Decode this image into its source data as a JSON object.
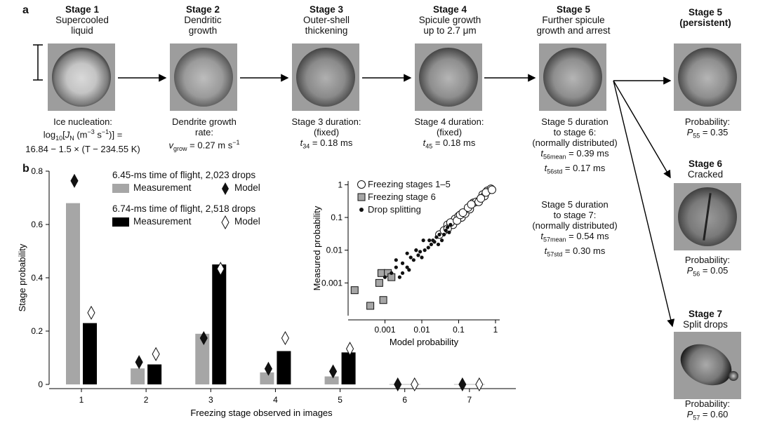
{
  "panel_a": {
    "letter": "a",
    "stages": [
      {
        "title": "Stage 1",
        "sub1": "Supercooled",
        "sub2": "liquid"
      },
      {
        "title": "Stage 2",
        "sub1": "Dendritic",
        "sub2": "growth"
      },
      {
        "title": "Stage 3",
        "sub1": "Outer-shell",
        "sub2": "thickening"
      },
      {
        "title": "Stage 4",
        "sub1": "Spicule growth",
        "sub2": "up to 2.7 μm"
      },
      {
        "title": "Stage 5",
        "sub1": "Further spicule",
        "sub2": "growth and arrest"
      }
    ],
    "side": [
      {
        "title": "Stage 5",
        "sub": "(persistent)",
        "prob_label": "Probability:",
        "prob_sym": "P",
        "prob_sub": "55",
        "prob_val": " = 0.35"
      },
      {
        "title": "Stage 6",
        "sub": "Cracked",
        "prob_label": "Probability:",
        "prob_sym": "P",
        "prob_sub": "56",
        "prob_val": " = 0.05"
      },
      {
        "title": "Stage 7",
        "sub": "Split drops",
        "prob_label": "Probability:",
        "prob_sym": "P",
        "prob_sub": "57",
        "prob_val": " = 0.60"
      }
    ],
    "cap1": {
      "l1": "Ice nucleation:",
      "l2a": "log",
      "l2sub": "10",
      "l2b": "[",
      "l2J": "J",
      "l2Jsub": "N",
      "l2c": " (m",
      "l2sup1": "−3",
      "l2d": " s",
      "l2sup2": "−1",
      "l2e": ")] =",
      "l3": "16.84 − 1.5 × (T − 234.55 K)"
    },
    "cap2": {
      "l1": "Dendrite growth",
      "l2": "rate:",
      "l3a": "v",
      "l3sub": "grow",
      "l3b": " = 0.27 m s",
      "l3sup": "−1"
    },
    "cap3": {
      "l1": "Stage 3 duration:",
      "l2": "(fixed)",
      "l3a": "t",
      "l3sub": "34",
      "l3b": " = 0.18 ms"
    },
    "cap4": {
      "l1": "Stage 4 duration:",
      "l2": "(fixed)",
      "l3a": "t",
      "l3sub": "45",
      "l3b": " = 0.18 ms"
    },
    "cap5": {
      "l1": "Stage 5 duration",
      "l2": "to stage 6:",
      "l3": "(normally distributed)",
      "l4a": "t",
      "l4sub": "56mean",
      "l4b": " = 0.39 ms",
      "l5a": "t",
      "l5sub": "56std",
      "l5b": " = 0.17 ms"
    },
    "cap7": {
      "l1": "Stage 5 duration",
      "l2": "to stage 7:",
      "l3": "(normally distributed)",
      "l4a": "t",
      "l4sub": "57mean",
      "l4b": " = 0.54 ms",
      "l5a": "t",
      "l5sub": "57std",
      "l5b": " = 0.30 ms"
    }
  },
  "panel_b": {
    "letter": "b",
    "legend": {
      "group1": "6.45-ms time of flight, 2,023 drops",
      "group2": "6.74-ms time of flight, 2,518 drops",
      "measurement": "Measurement",
      "model": "Model"
    },
    "inset_legend": [
      "Freezing stages 1–5",
      "Freezing stage 6",
      "Drop splitting"
    ]
  },
  "chart_data": [
    {
      "type": "bar",
      "xlabel": "Freezing stage observed in images",
      "ylabel": "Stage probability",
      "categories": [
        "1",
        "2",
        "3",
        "4",
        "5",
        "6",
        "7"
      ],
      "ylim": [
        0,
        0.8
      ],
      "yticks": [
        "0",
        "0.2",
        "0.4",
        "0.6",
        "0.8"
      ],
      "series": [
        {
          "name": "6.45-ms time of flight, 2,023 drops Measurement",
          "color": "#a6a6a6",
          "values": [
            0.68,
            0.06,
            0.19,
            0.045,
            0.03,
            0,
            0
          ]
        },
        {
          "name": "6.45-ms time of flight, 2,023 drops Model",
          "color": "#111111",
          "values": [
            0.74,
            0.06,
            0.15,
            0.035,
            0.025,
            0,
            0
          ]
        },
        {
          "name": "6.74-ms time of flight, 2,518 drops Measurement",
          "color": "#000000",
          "values": [
            0.23,
            0.075,
            0.45,
            0.125,
            0.12,
            0,
            0
          ]
        },
        {
          "name": "6.74-ms time of flight, 2,518 drops Model",
          "color": "#ffffff",
          "values": [
            0.245,
            0.09,
            0.41,
            0.15,
            0.11,
            0,
            0
          ]
        }
      ]
    },
    {
      "type": "scatter",
      "xlabel": "Model probability",
      "ylabel": "Measured probability",
      "xscale": "log",
      "yscale": "log",
      "xlim": [
        0.0001,
        1.3
      ],
      "ylim": [
        0.0001,
        1.3
      ],
      "xticks": [
        "0.001",
        "0.01",
        "0.1",
        "1"
      ],
      "yticks": [
        "0.001",
        "0.01",
        "0.1",
        "1"
      ],
      "series": [
        {
          "name": "Freezing stages 1–5",
          "marker": "open-circle",
          "x": [
            0.03,
            0.04,
            0.05,
            0.07,
            0.08,
            0.1,
            0.12,
            0.15,
            0.2,
            0.25,
            0.3,
            0.35,
            0.45,
            0.5,
            0.6,
            0.75,
            0.05,
            0.06,
            0.09,
            0.11,
            0.13,
            0.18,
            0.22,
            0.4,
            0.55,
            0.8
          ],
          "y": [
            0.03,
            0.04,
            0.06,
            0.06,
            0.09,
            0.11,
            0.1,
            0.13,
            0.18,
            0.28,
            0.3,
            0.3,
            0.5,
            0.45,
            0.65,
            0.75,
            0.045,
            0.07,
            0.08,
            0.12,
            0.14,
            0.2,
            0.25,
            0.38,
            0.58,
            0.7
          ]
        },
        {
          "name": "Freezing stage 6",
          "marker": "square",
          "x": [
            0.00015,
            0.0004,
            0.0007,
            0.0009,
            0.0008,
            0.0012,
            0.0015
          ],
          "y": [
            0.0006,
            0.0002,
            0.001,
            0.0003,
            0.002,
            0.002,
            0.0015
          ]
        },
        {
          "name": "Drop splitting",
          "marker": "dot",
          "x": [
            0.001,
            0.0015,
            0.002,
            0.002,
            0.003,
            0.003,
            0.004,
            0.004,
            0.005,
            0.006,
            0.007,
            0.008,
            0.009,
            0.01,
            0.012,
            0.015,
            0.018,
            0.02,
            0.022,
            0.025,
            0.03,
            0.035,
            0.04,
            0.045,
            0.05,
            0.055,
            0.06,
            0.0025,
            0.0045,
            0.007,
            0.011,
            0.016,
            0.028
          ],
          "y": [
            0.0015,
            0.002,
            0.003,
            0.005,
            0.004,
            0.002,
            0.003,
            0.008,
            0.006,
            0.005,
            0.01,
            0.007,
            0.009,
            0.006,
            0.01,
            0.012,
            0.015,
            0.02,
            0.018,
            0.025,
            0.03,
            0.02,
            0.03,
            0.04,
            0.05,
            0.035,
            0.06,
            0.0015,
            0.0025,
            0.01,
            0.02,
            0.02,
            0.015
          ]
        }
      ]
    }
  ]
}
